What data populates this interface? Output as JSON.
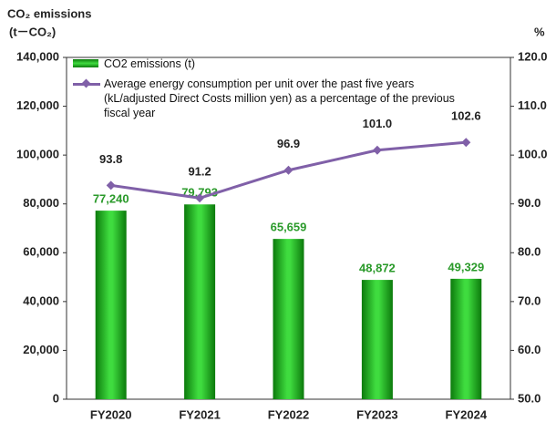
{
  "chart_data": {
    "type": "bar_line",
    "y_axis_title": [
      "CO₂ emissions",
      "(t－CO₂)"
    ],
    "y2_axis_title": "%",
    "categories": [
      "FY2020",
      "FY2021",
      "FY2022",
      "FY2023",
      "FY2024"
    ],
    "series": [
      {
        "name": "CO2 emissions (t)",
        "type": "bar",
        "color": "#2db52d",
        "values": [
          77240,
          79793,
          65659,
          48872,
          49329
        ],
        "value_labels": [
          "77,240",
          "79,793",
          "65,659",
          "48,872",
          "49,329"
        ],
        "label_color": "#2a9a2a"
      },
      {
        "name": "Average energy consumption per unit over the past five years (kL/adjusted Direct Costs million yen) as a percentage of the previous fiscal year",
        "type": "line",
        "axis": "y2",
        "color": "#8060a8",
        "values": [
          93.8,
          91.2,
          96.9,
          101,
          102.6
        ],
        "value_labels": [
          "93.8",
          "91.2",
          "96.9",
          "101.0",
          "102.6"
        ]
      }
    ],
    "ylim": [
      0,
      140000
    ],
    "yticks": [
      0,
      {
        "value": 20000,
        "label": "20,000"
      },
      {
        "value": 40000,
        "label": "40,000"
      },
      {
        "value": 60000,
        "label": "60,000"
      },
      {
        "value": 80000,
        "label": "80,000"
      },
      {
        "value": 100000,
        "label": "100,000"
      },
      {
        "value": 120000,
        "label": "120,000"
      },
      {
        "value": 140000,
        "label": "140,000"
      }
    ],
    "y2lim": [
      50,
      120
    ],
    "y2ticks": [
      {
        "value": 50,
        "label": "50.0"
      },
      {
        "value": 60,
        "label": "60.0"
      },
      {
        "value": 70,
        "label": "70.0"
      },
      {
        "value": 80,
        "label": "80.0"
      },
      {
        "value": 90,
        "label": "90.0"
      },
      {
        "value": 100,
        "label": "100.0"
      },
      {
        "value": 110,
        "label": "110.0"
      },
      {
        "value": 120,
        "label": "120.0"
      }
    ]
  }
}
